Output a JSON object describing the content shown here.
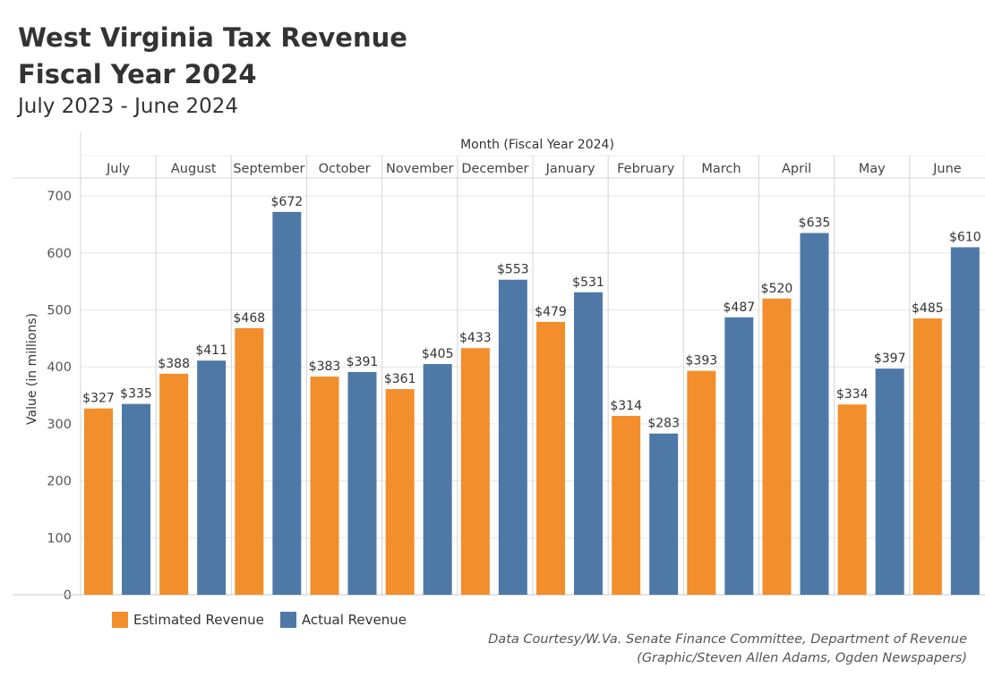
{
  "title_line1": "West Virginia Tax Revenue",
  "title_line2": "Fiscal Year 2024",
  "subtitle": "July 2023 - June 2024",
  "source_line1": "Data Courtesy/W.Va. Senate Finance Committee, Department of Revenue",
  "source_line2": "(Graphic/Steven Allen Adams, Ogden Newspapers)",
  "colors": {
    "estimated": "#f28e2b",
    "actual": "#4e79a7",
    "grid": "#e6e6e6",
    "divider": "#d4d4d4"
  },
  "chart_data": {
    "type": "bar",
    "title": "West Virginia Tax Revenue Fiscal Year 2024",
    "xlabel": "Month (Fiscal Year 2024)",
    "ylabel": "Value (in millions)",
    "ylim": [
      0,
      730
    ],
    "yticks": [
      0,
      100,
      200,
      300,
      400,
      500,
      600,
      700
    ],
    "categories": [
      "July",
      "August",
      "September",
      "October",
      "November",
      "December",
      "January",
      "February",
      "March",
      "April",
      "May",
      "June"
    ],
    "series": [
      {
        "name": "Estimated Revenue",
        "values": [
          327,
          388,
          468,
          383,
          361,
          433,
          479,
          314,
          393,
          520,
          334,
          485
        ],
        "labels": [
          "$327",
          "$388",
          "$468",
          "$383",
          "$361",
          "$433",
          "$479",
          "$314",
          "$393",
          "$520",
          "$334",
          "$485"
        ]
      },
      {
        "name": "Actual Revenue",
        "values": [
          335,
          411,
          672,
          391,
          405,
          553,
          531,
          283,
          487,
          635,
          397,
          610
        ],
        "labels": [
          "$335",
          "$411",
          "$672",
          "$391",
          "$405",
          "$553",
          "$531",
          "$283",
          "$487",
          "$635",
          "$397",
          "$610"
        ]
      }
    ],
    "legend": "bottom-left"
  }
}
